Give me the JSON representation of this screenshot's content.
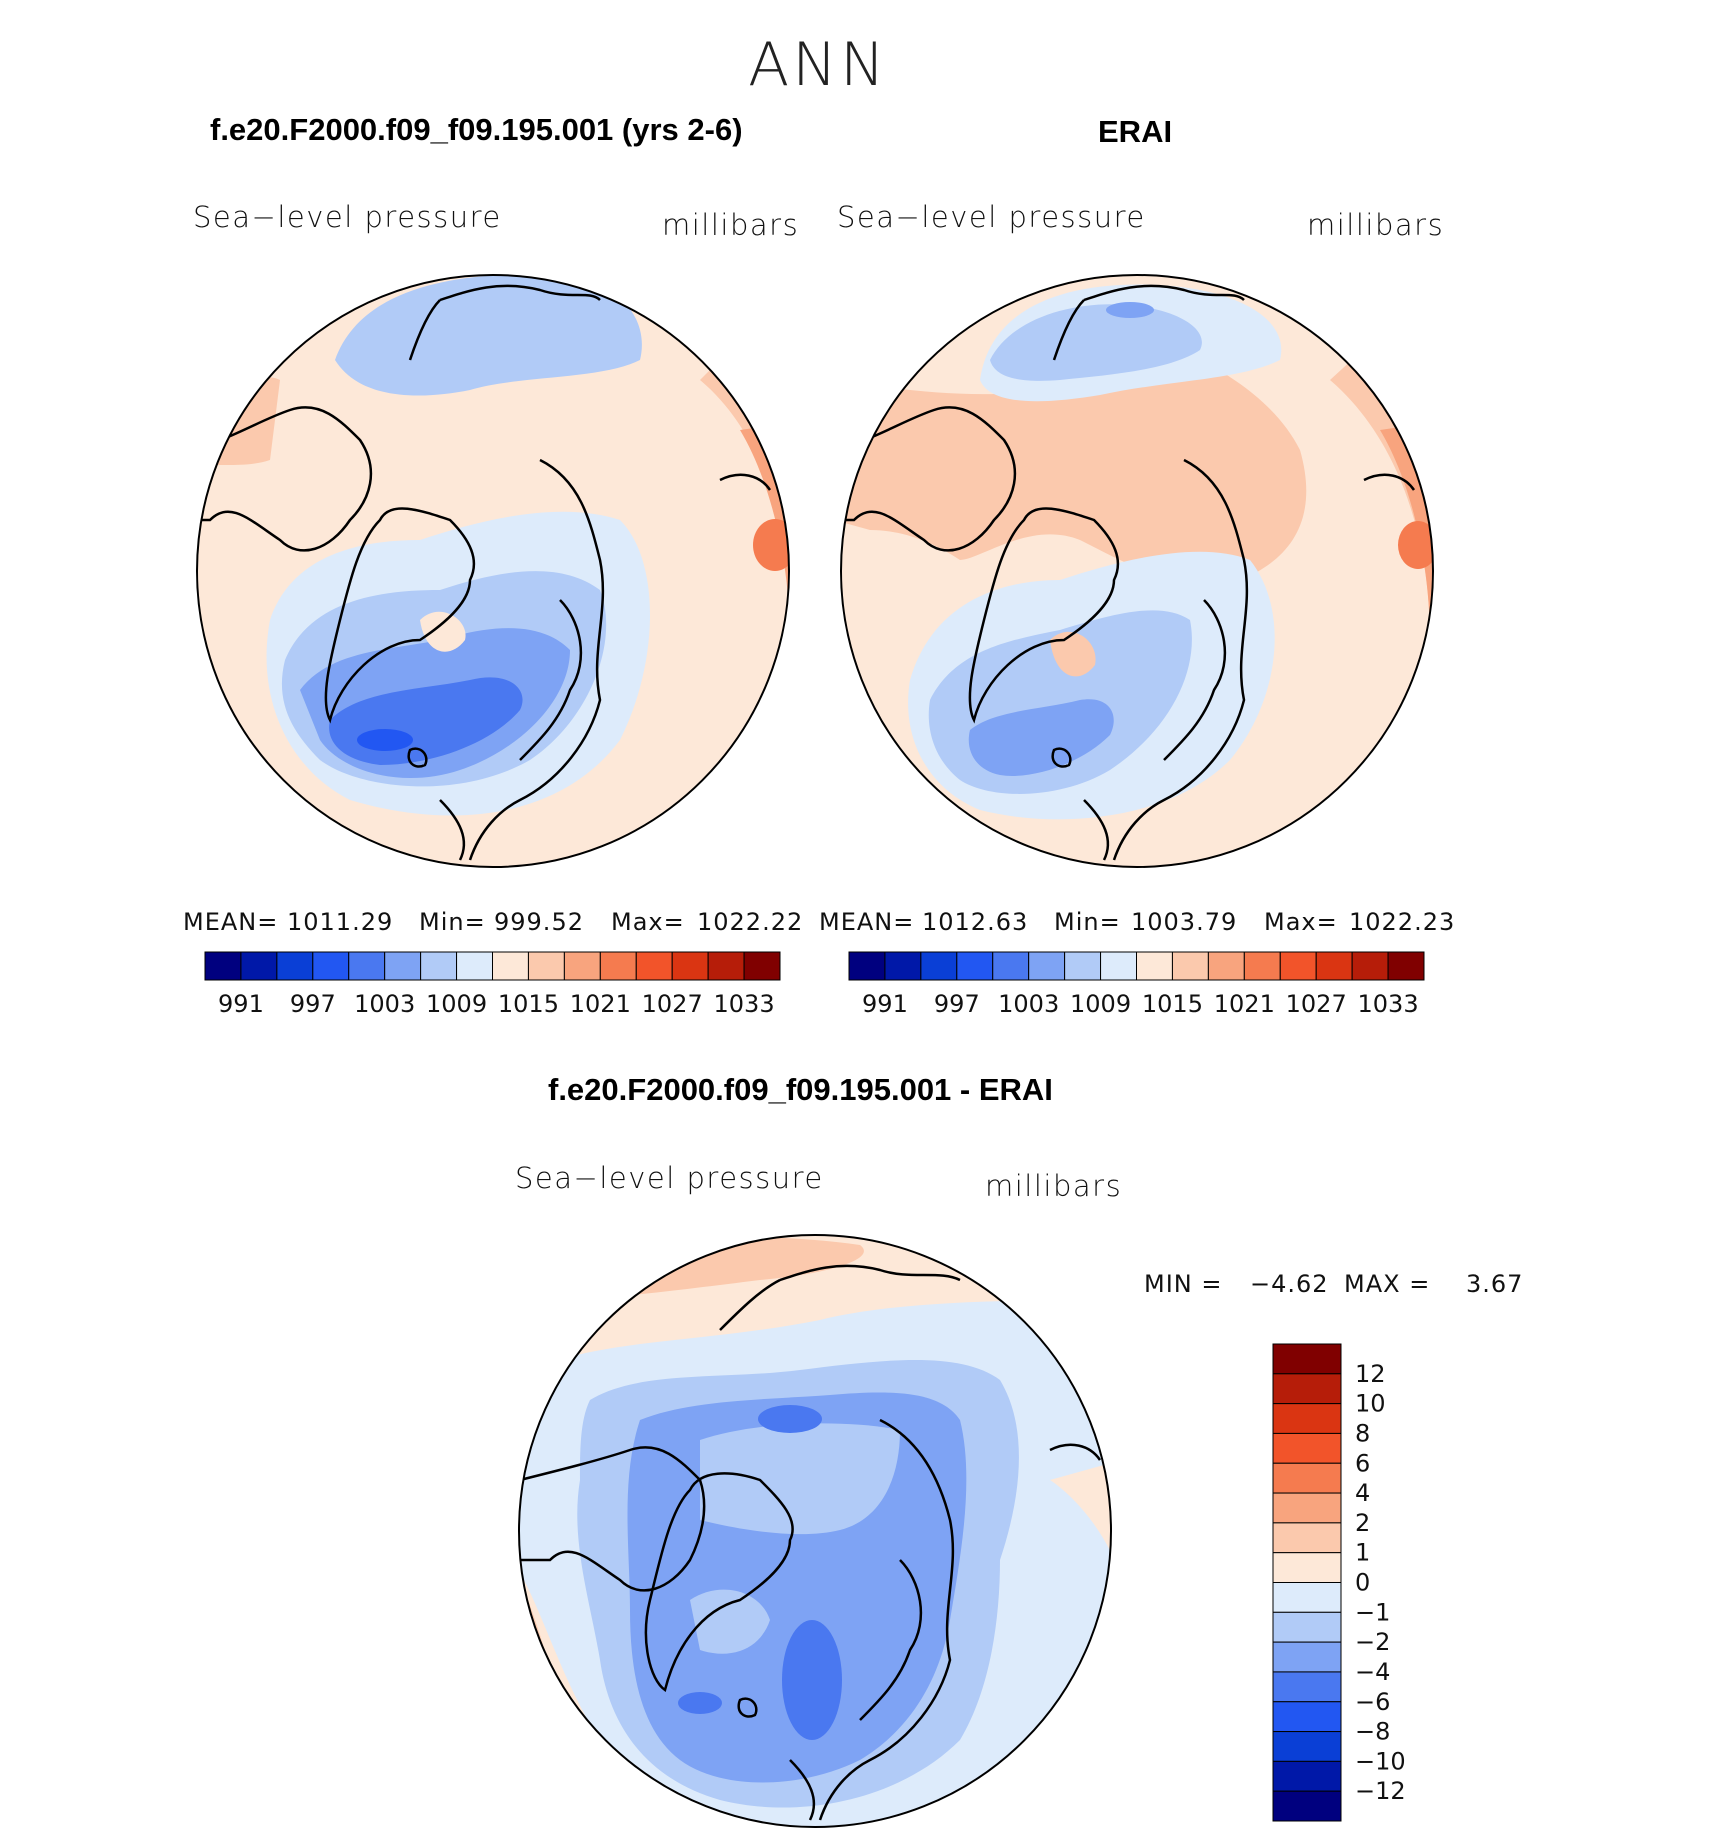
{
  "title": "ANN",
  "panels": [
    {
      "title": "f.e20.F2000.f09_f09.195.001 (yrs 2-6)",
      "variable": "Sea−level pressure",
      "units": "millibars",
      "stats": {
        "mean_label": "MEAN=",
        "mean": "1011.29",
        "min_label": "Min=",
        "min": "999.52",
        "max_label": "Max=",
        "max": "1022.22"
      }
    },
    {
      "title": "ERAI",
      "variable": "Sea−level pressure",
      "units": "millibars",
      "stats": {
        "mean_label": "MEAN=",
        "mean": "1012.63",
        "min_label": "Min=",
        "min": "1003.79",
        "max_label": "Max=",
        "max": "1022.23"
      }
    },
    {
      "title": "f.e20.F2000.f09_f09.195.001 - ERAI",
      "variable": "Sea−level pressure",
      "units": "millibars",
      "stats": {
        "min_label": "MIN =",
        "min": "−4.62",
        "max_label": "MAX =",
        "max": "3.67"
      }
    }
  ],
  "chart_data": [
    {
      "type": "heatmap",
      "title": "f.e20.F2000.f09_f09.195.001 (yrs 2-6)",
      "projection": "north polar stereographic",
      "variable": "Sea-level pressure",
      "units": "millibars",
      "mean": 1011.29,
      "min": 999.52,
      "max": 1022.22,
      "colorbar": {
        "orientation": "horizontal",
        "levels": [
          988,
          991,
          994,
          997,
          1000,
          1003,
          1006,
          1009,
          1012,
          1015,
          1018,
          1021,
          1024,
          1027,
          1030,
          1033
        ],
        "tick_labels": [
          "991",
          "997",
          "1003",
          "1009",
          "1015",
          "1021",
          "1027",
          "1033"
        ],
        "colors": [
          "#00007f",
          "#0018a8",
          "#0a3fd6",
          "#2257f2",
          "#4a78f0",
          "#7ea3f4",
          "#b1cbf7",
          "#ddebfb",
          "#fde8d8",
          "#fbc9ad",
          "#f8a47e",
          "#f57b4f",
          "#f2542a",
          "#da3512",
          "#b61d09",
          "#800000"
        ]
      }
    },
    {
      "type": "heatmap",
      "title": "ERAI",
      "projection": "north polar stereographic",
      "variable": "Sea-level pressure",
      "units": "millibars",
      "mean": 1012.63,
      "min": 1003.79,
      "max": 1022.23,
      "colorbar": {
        "orientation": "horizontal",
        "levels": [
          988,
          991,
          994,
          997,
          1000,
          1003,
          1006,
          1009,
          1012,
          1015,
          1018,
          1021,
          1024,
          1027,
          1030,
          1033
        ],
        "tick_labels": [
          "991",
          "997",
          "1003",
          "1009",
          "1015",
          "1021",
          "1027",
          "1033"
        ],
        "colors": [
          "#00007f",
          "#0018a8",
          "#0a3fd6",
          "#2257f2",
          "#4a78f0",
          "#7ea3f4",
          "#b1cbf7",
          "#ddebfb",
          "#fde8d8",
          "#fbc9ad",
          "#f8a47e",
          "#f57b4f",
          "#f2542a",
          "#da3512",
          "#b61d09",
          "#800000"
        ]
      }
    },
    {
      "type": "heatmap",
      "title": "f.e20.F2000.f09_f09.195.001 - ERAI",
      "projection": "north polar stereographic",
      "variable": "Sea-level pressure",
      "units": "millibars",
      "min": -4.62,
      "max": 3.67,
      "colorbar": {
        "orientation": "vertical",
        "tick_labels": [
          "12",
          "10",
          "8",
          "6",
          "4",
          "2",
          "1",
          "0",
          "−1",
          "−2",
          "−4",
          "−6",
          "−8",
          "−10",
          "−12"
        ],
        "colors": [
          "#800000",
          "#b61d09",
          "#da3512",
          "#f2542a",
          "#f57b4f",
          "#f8a47e",
          "#fbc9ad",
          "#fde8d8",
          "#ddebfb",
          "#b1cbf7",
          "#7ea3f4",
          "#4a78f0",
          "#2257f2",
          "#0a3fd6",
          "#0018a8",
          "#00007f"
        ]
      }
    }
  ]
}
